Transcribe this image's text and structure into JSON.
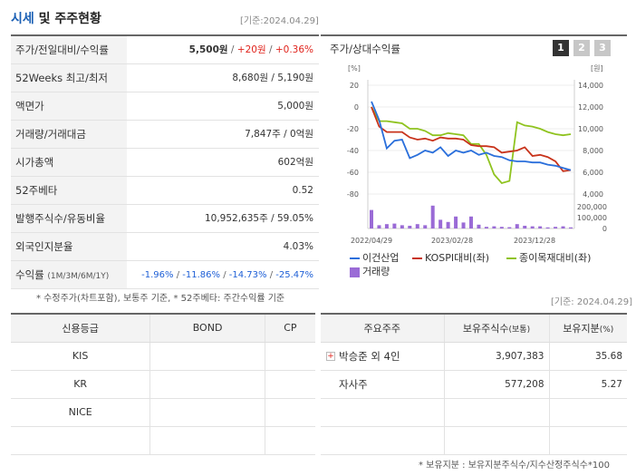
{
  "header": {
    "title_accent": "시세",
    "title_rest": "및 주주현황",
    "date": "[기준:2024.04.29]"
  },
  "summary": {
    "rows": [
      {
        "label": "주가/전일대비/수익률",
        "values": [
          "5,500원",
          "+20원",
          "+0.36%"
        ]
      },
      {
        "label": "52Weeks 최고/최저",
        "value": "8,680원 / 5,190원"
      },
      {
        "label": "액면가",
        "value": "5,000원"
      },
      {
        "label": "거래량/거래대금",
        "value": "7,847주 / 0억원"
      },
      {
        "label": "시가총액",
        "value": "602억원"
      },
      {
        "label": "52주베타",
        "value": "0.52"
      },
      {
        "label": "발행주식수/유동비율",
        "value": "10,952,635주 / 59.05%"
      },
      {
        "label": "외국인지분율",
        "value": "4.03%"
      },
      {
        "label": "수익률",
        "label_small": "(1M/3M/6M/1Y)",
        "values": [
          "-1.96%",
          "-11.86%",
          "-14.73%",
          "-25.47%"
        ]
      }
    ],
    "footnote": "* 수정주가(차트포함), 보통주 기준, * 52주베타: 주간수익률 기준"
  },
  "chart": {
    "title": "주가/상대수익률",
    "tabs": [
      "1",
      "2",
      "3"
    ],
    "left_unit": "[%]",
    "right_unit": "[원]",
    "legend": {
      "company": "이건산업",
      "kospi": "KOSPI대비(좌)",
      "industry": "종이목재대비(좌)",
      "volume": "거래량"
    },
    "colors": {
      "company": "#2a6fdb",
      "kospi": "#c8331b",
      "industry": "#8fc31f",
      "volume": "#9a6bd6"
    }
  },
  "chart_data": {
    "type": "line",
    "x_tick_labels": [
      "2022/04/29",
      "2023/02/28",
      "2023/12/28"
    ],
    "left_axis": {
      "ticks": [
        "20",
        "0",
        "-20",
        "-40",
        "-60",
        "-80"
      ],
      "ylim": [
        -80,
        20
      ]
    },
    "right_axis": {
      "ticks": [
        "14,000",
        "12,000",
        "10,000",
        "8,000",
        "6,000",
        "4,000"
      ],
      "ylim": [
        4000,
        14000
      ]
    },
    "volume_axis": {
      "ticks": [
        "200,000",
        "100,000",
        "0"
      ],
      "ylim": [
        0,
        200000
      ]
    },
    "series": [
      {
        "name": "이건산업",
        "axis": "right",
        "values": [
          12500,
          10800,
          8200,
          8900,
          9000,
          7300,
          7600,
          8000,
          7800,
          8300,
          7500,
          8000,
          7800,
          8000,
          7600,
          7800,
          7500,
          7400,
          7100,
          7000,
          7000,
          6900,
          6900,
          6700,
          6600,
          6400,
          6200
        ]
      },
      {
        "name": "KOSPI대비(좌)",
        "axis": "left",
        "values": [
          0,
          -18,
          -23,
          -23,
          -23,
          -28,
          -30,
          -29,
          -31,
          -28,
          -29,
          -29,
          -30,
          -35,
          -36,
          -36,
          -37,
          -42,
          -41,
          -40,
          -37,
          -45,
          -44,
          -46,
          -50,
          -59,
          -58
        ]
      },
      {
        "name": "종이목재대비(좌)",
        "axis": "left",
        "values": [
          0,
          -13,
          -13,
          -14,
          -15,
          -20,
          -20,
          -22,
          -26,
          -26,
          -24,
          -25,
          -26,
          -34,
          -34,
          -44,
          -62,
          -70,
          -68,
          -14,
          -17,
          -18,
          -20,
          -23,
          -25,
          -26,
          -25
        ]
      },
      {
        "name": "거래량",
        "axis": "volume",
        "values": [
          170000,
          30000,
          40000,
          45000,
          30000,
          25000,
          40000,
          30000,
          210000,
          80000,
          60000,
          110000,
          55000,
          110000,
          35000,
          15000,
          20000,
          15000,
          12000,
          40000,
          25000,
          20000,
          20000,
          10000,
          15000,
          20000,
          10000
        ]
      }
    ]
  },
  "date2": "[기준: 2024.04.29]",
  "credit": {
    "headers": [
      "신용등급",
      "BOND",
      "CP"
    ],
    "rows": [
      [
        "KIS",
        "",
        ""
      ],
      [
        "KR",
        "",
        ""
      ],
      [
        "NICE",
        "",
        ""
      ],
      [
        "",
        "",
        ""
      ]
    ]
  },
  "holders": {
    "headers": [
      "주요주주",
      "보유주식수",
      "(보통)",
      "보유지분",
      "(%)"
    ],
    "rows": [
      {
        "name": "박승준 외 4인",
        "shares": "3,907,383",
        "pct": "35.68"
      },
      {
        "name": "자사주",
        "shares": "577,208",
        "pct": "5.27"
      },
      {
        "name": "",
        "shares": "",
        "pct": ""
      },
      {
        "name": "",
        "shares": "",
        "pct": ""
      }
    ],
    "footnote": "* 보유지분 : 보유지분주식수/지수산정주식수*100"
  }
}
